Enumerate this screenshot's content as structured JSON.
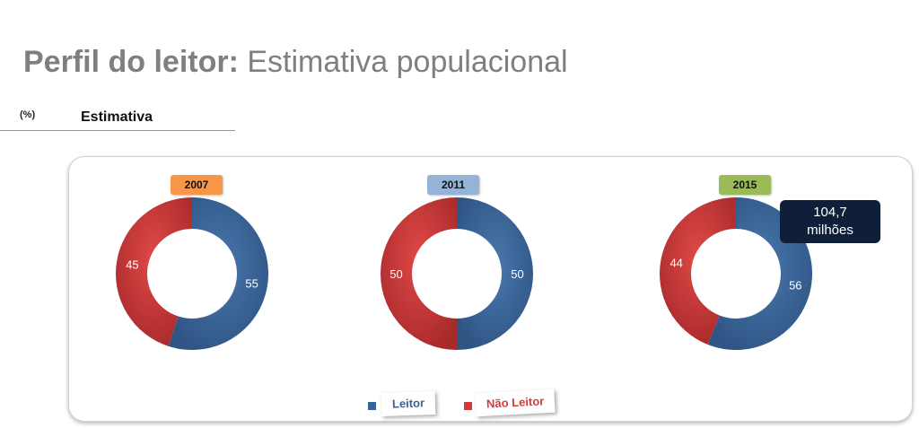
{
  "header": {
    "title_bold": "Perfil do leitor:",
    "title_rest": " Estimativa populacional",
    "unit": "(%)",
    "section": "Estimativa"
  },
  "chart_data": {
    "type": "pie",
    "variant": "donut",
    "series_names": [
      "Leitor",
      "Não Leitor"
    ],
    "colors": {
      "Leitor": "#3a6296",
      "Não Leitor": "#d03c3c"
    },
    "charts": [
      {
        "year": "2007",
        "tag_color": "#f79646",
        "values": {
          "Leitor": 55,
          "Não Leitor": 45
        }
      },
      {
        "year": "2011",
        "tag_color": "#95b3d7",
        "values": {
          "Leitor": 50,
          "Não Leitor": 50
        }
      },
      {
        "year": "2015",
        "tag_color": "#9bbb59",
        "values": {
          "Leitor": 56,
          "Não Leitor": 44
        }
      }
    ],
    "annotation": {
      "line1": "104,7",
      "line2": "milhões"
    },
    "legend_position": "bottom"
  }
}
